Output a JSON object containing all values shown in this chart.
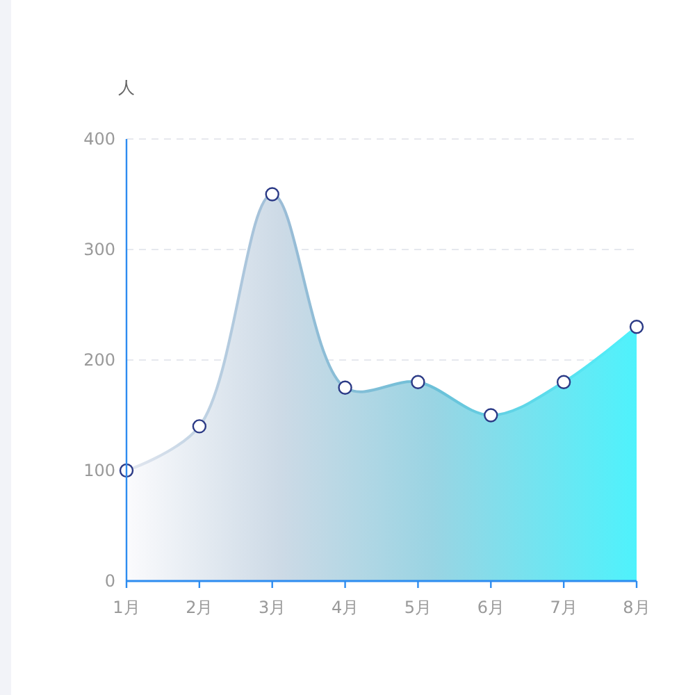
{
  "chart_data": {
    "type": "area",
    "ylabel": "人",
    "categories": [
      "1月",
      "2月",
      "3月",
      "4月",
      "5月",
      "6月",
      "7月",
      "8月"
    ],
    "series": [
      {
        "color": "#4ef2fc",
        "values": [
          100,
          140,
          350,
          175,
          180,
          150,
          180,
          230
        ]
      }
    ],
    "ylim": [
      0,
      400
    ],
    "yticks": [
      0,
      100,
      200,
      300,
      400
    ],
    "grid": "y",
    "marker": "circle"
  }
}
